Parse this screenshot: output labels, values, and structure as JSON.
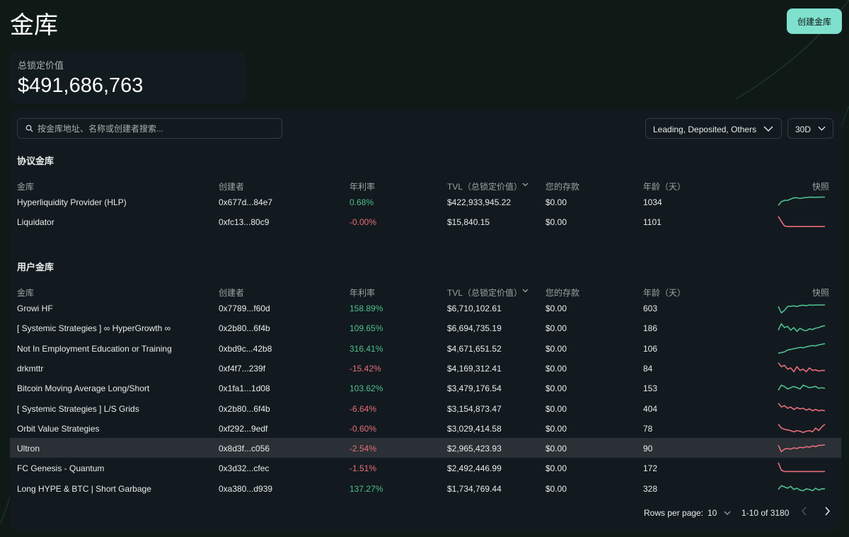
{
  "page": {
    "title": "金库",
    "create_button": "创建金库"
  },
  "tvl": {
    "label": "总锁定价值",
    "value": "$491,686,763"
  },
  "search": {
    "placeholder": "按金库地址、名称或创建者搜索..."
  },
  "filters": {
    "category": "Leading, Deposited, Others",
    "period": "30D"
  },
  "columns": [
    "金库",
    "创建者",
    "年利率",
    "TVL（总锁定价值）",
    "您的存款",
    "年龄（天）",
    "快照"
  ],
  "protocol": {
    "title": "协议金库",
    "rows": [
      {
        "name": "Hyperliquidity Provider (HLP)",
        "creator": "0x677d...84e7",
        "apr": "0.68%",
        "trend": "pos",
        "tvl": "$422,933,945.22",
        "deposit": "$0.00",
        "age": "1034",
        "snapshot": [
          0.2,
          0.5,
          0.6,
          0.6,
          0.7,
          0.8,
          0.8,
          0.75,
          0.8,
          0.82,
          0.85,
          0.85,
          0.84,
          0.85,
          0.86,
          0.85
        ]
      },
      {
        "name": "Liquidator",
        "creator": "0xfc13...80c9",
        "apr": "-0.00%",
        "trend": "neg",
        "tvl": "$15,840.15",
        "deposit": "$0.00",
        "age": "1101",
        "snapshot": [
          0.9,
          0.5,
          0.15,
          0.1,
          0.1,
          0.1,
          0.1,
          0.1,
          0.1,
          0.1,
          0.1,
          0.1,
          0.1,
          0.1,
          0.1,
          0.1
        ]
      }
    ]
  },
  "user": {
    "title": "用户金库",
    "rows": [
      {
        "name": "Growi HF",
        "creator": "0x7789...f60d",
        "apr": "158.89%",
        "trend": "pos",
        "tvl": "$6,710,102.61",
        "deposit": "$0.00",
        "age": "603",
        "snapshot": [
          0.6,
          0.1,
          0.3,
          0.6,
          0.62,
          0.65,
          0.6,
          0.68,
          0.7,
          0.66,
          0.72,
          0.7,
          0.72,
          0.71,
          0.72,
          0.72
        ]
      },
      {
        "name": "[ Systemic Strategies ] ∞ HyperGrowth ∞",
        "creator": "0x2b80...6f4b",
        "apr": "109.65%",
        "trend": "pos",
        "tvl": "$6,694,735.19",
        "deposit": "$0.00",
        "age": "186",
        "snapshot": [
          0.3,
          0.8,
          0.5,
          0.6,
          0.3,
          0.5,
          0.2,
          0.45,
          0.3,
          0.25,
          0.4,
          0.35,
          0.45,
          0.5,
          0.6,
          0.65
        ]
      },
      {
        "name": "Not In Employment Education or Training",
        "creator": "0xbd9c...42b8",
        "apr": "316.41%",
        "trend": "pos",
        "tvl": "$4,671,651.52",
        "deposit": "$0.00",
        "age": "106",
        "snapshot": [
          0.1,
          0.15,
          0.2,
          0.35,
          0.4,
          0.45,
          0.5,
          0.55,
          0.52,
          0.6,
          0.65,
          0.7,
          0.68,
          0.75,
          0.8,
          0.85
        ]
      },
      {
        "name": "drkmttr",
        "creator": "0xf4f7...239f",
        "apr": "-15.42%",
        "trend": "neg",
        "tvl": "$4,169,312.41",
        "deposit": "$0.00",
        "age": "84",
        "snapshot": [
          0.9,
          0.6,
          0.7,
          0.4,
          0.5,
          0.2,
          0.6,
          0.3,
          0.4,
          0.2,
          0.5,
          0.3,
          0.35,
          0.25,
          0.3,
          0.3
        ]
      },
      {
        "name": "Bitcoin Moving Average Long/Short",
        "creator": "0x1fa1...1d08",
        "apr": "103.62%",
        "trend": "pos",
        "tvl": "$3,479,176.54",
        "deposit": "$0.00",
        "age": "153",
        "snapshot": [
          0.3,
          0.7,
          0.6,
          0.4,
          0.5,
          0.6,
          0.5,
          0.4,
          0.7,
          0.6,
          0.5,
          0.55,
          0.6,
          0.45,
          0.5,
          0.45
        ]
      },
      {
        "name": "[ Systemic Strategies ] L/S Grids",
        "creator": "0x2b80...6f4b",
        "apr": "-6.64%",
        "trend": "neg",
        "tvl": "$3,154,873.47",
        "deposit": "$0.00",
        "age": "404",
        "snapshot": [
          0.9,
          0.6,
          0.7,
          0.5,
          0.6,
          0.4,
          0.55,
          0.45,
          0.5,
          0.35,
          0.45,
          0.3,
          0.4,
          0.3,
          0.35,
          0.3
        ]
      },
      {
        "name": "Orbit Value Strategies",
        "creator": "0xf292...9edf",
        "apr": "-0.60%",
        "trend": "neg",
        "tvl": "$3,029,414.58",
        "deposit": "$0.00",
        "age": "78",
        "snapshot": [
          0.8,
          0.5,
          0.4,
          0.35,
          0.3,
          0.2,
          0.3,
          0.25,
          0.15,
          0.25,
          0.3,
          0.2,
          0.5,
          0.3,
          0.6,
          0.8
        ]
      },
      {
        "name": "Ultron",
        "creator": "0x8d3f...c056",
        "apr": "-2.54%",
        "trend": "neg",
        "tvl": "$2,965,423.93",
        "deposit": "$0.00",
        "age": "90",
        "snapshot": [
          0.7,
          0.2,
          0.4,
          0.45,
          0.4,
          0.5,
          0.45,
          0.55,
          0.5,
          0.6,
          0.55,
          0.65,
          0.6,
          0.7,
          0.7,
          0.75
        ]
      },
      {
        "name": "FC Genesis - Quantum",
        "creator": "0x3d32...cfec",
        "apr": "-1.51%",
        "trend": "neg",
        "tvl": "$2,492,446.99",
        "deposit": "$0.00",
        "age": "172",
        "snapshot": [
          0.9,
          0.3,
          0.2,
          0.2,
          0.2,
          0.2,
          0.2,
          0.2,
          0.2,
          0.2,
          0.2,
          0.2,
          0.2,
          0.2,
          0.2,
          0.2
        ]
      },
      {
        "name": "Long HYPE & BTC | Short Garbage",
        "creator": "0xa380...d939",
        "apr": "137.27%",
        "trend": "pos",
        "tvl": "$1,734,769.44",
        "deposit": "$0.00",
        "age": "328",
        "snapshot": [
          0.4,
          0.7,
          0.6,
          0.5,
          0.65,
          0.4,
          0.5,
          0.35,
          0.3,
          0.45,
          0.4,
          0.3,
          0.5,
          0.35,
          0.45,
          0.45
        ]
      }
    ]
  },
  "pagination": {
    "rows_label": "Rows per page:",
    "rows_value": "10",
    "range": "1-10 of 3180"
  },
  "colors": {
    "accent": "#7fe0cd",
    "positive": "#4fbf8f",
    "negative": "#e86d79",
    "panel": "#121a1f",
    "active_row": "#2a3035"
  }
}
